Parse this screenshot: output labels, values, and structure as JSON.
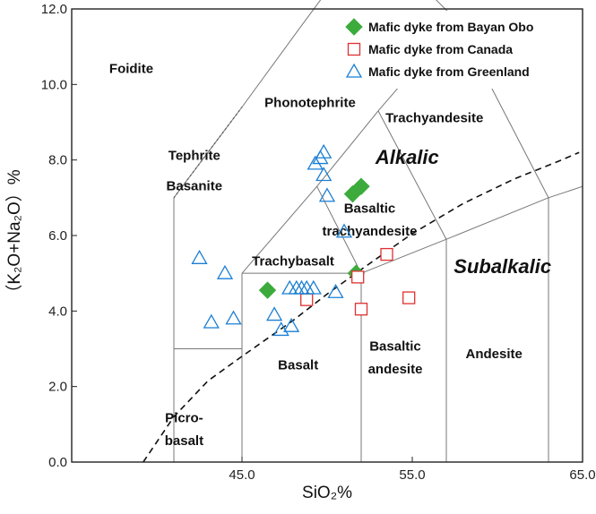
{
  "chart_data": {
    "type": "scatter",
    "xlabel": "SiO₂%",
    "ylabel": "（K₂O+Na₂O）%",
    "xlim": [
      35,
      65
    ],
    "ylim": [
      0,
      12
    ],
    "x_ticks": [
      "45.0",
      "55.0",
      "65.0"
    ],
    "y_ticks": [
      "0.0",
      "2.0",
      "4.0",
      "6.0",
      "8.0",
      "10.0",
      "12.0"
    ],
    "legend_position": "top-right",
    "series": [
      {
        "name": "Mafic dyke from Bayan Obo",
        "marker": "diamond",
        "color": "#3cab3c",
        "points": [
          [
            46.5,
            4.55
          ],
          [
            51.5,
            7.1
          ],
          [
            52.0,
            7.3
          ],
          [
            51.7,
            5.0
          ]
        ]
      },
      {
        "name": "Mafic dyke from Canada",
        "marker": "square",
        "color": "#e03030",
        "points": [
          [
            48.8,
            4.3
          ],
          [
            51.8,
            4.9
          ],
          [
            52.0,
            4.05
          ],
          [
            53.5,
            5.5
          ],
          [
            54.8,
            4.35
          ]
        ]
      },
      {
        "name": "Mafic dyke from Greenland",
        "marker": "triangle",
        "color": "#1a7fd4",
        "points": [
          [
            42.5,
            5.4
          ],
          [
            43.2,
            3.7
          ],
          [
            44.5,
            3.8
          ],
          [
            44.0,
            5.0
          ],
          [
            46.9,
            3.9
          ],
          [
            47.3,
            3.5
          ],
          [
            47.9,
            3.6
          ],
          [
            47.8,
            4.6
          ],
          [
            48.2,
            4.6
          ],
          [
            48.5,
            4.6
          ],
          [
            48.8,
            4.6
          ],
          [
            49.2,
            4.6
          ],
          [
            50.5,
            4.5
          ],
          [
            49.3,
            7.9
          ],
          [
            49.6,
            8.05
          ],
          [
            49.8,
            8.2
          ],
          [
            49.8,
            7.6
          ],
          [
            50.0,
            7.05
          ],
          [
            51.0,
            6.1
          ]
        ]
      }
    ],
    "regions": [
      {
        "label": "Foidite"
      },
      {
        "label": "Phonotephrite"
      },
      {
        "label": "Trachyandesite"
      },
      {
        "label": "Tephrite"
      },
      {
        "label": "Basanite"
      },
      {
        "label": "Basaltic"
      },
      {
        "label": "trachyandesite"
      },
      {
        "label": "Trachybasalt"
      },
      {
        "label": "Basalt"
      },
      {
        "label": "Basaltic"
      },
      {
        "label": "andesite"
      },
      {
        "label": "Andesite"
      },
      {
        "label": "Picro-"
      },
      {
        "label": "basalt"
      }
    ],
    "series_labels": {
      "alkalic": "Alkalic",
      "subalkalic": "Subalkalic"
    }
  }
}
